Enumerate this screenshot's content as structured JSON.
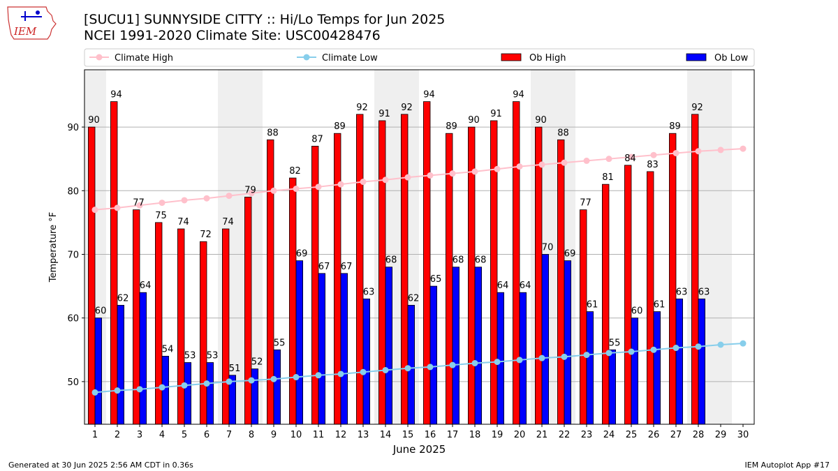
{
  "header": {
    "title": "[SUCU1] SUNNYSIDE CITTY :: Hi/Lo Temps for Jun 2025",
    "subtitle": "NCEI 1991-2020 Climate Site: USC00428476",
    "logo_text": "IEM"
  },
  "footer": {
    "left": "Generated at 30 Jun 2025 2:56 AM CDT in 0.36s",
    "right": "IEM Autoplot App #17"
  },
  "chart_data": {
    "type": "bar",
    "title": "[SUCU1] SUNNYSIDE CITTY :: Hi/Lo Temps for Jun 2025",
    "subtitle": "NCEI 1991-2020 Climate Site: USC00428476",
    "xlabel": "June 2025",
    "ylabel": "Temperature °F",
    "ylim": [
      43.3,
      99.0
    ],
    "yticks": [
      50,
      60,
      70,
      80,
      90
    ],
    "grid": "y",
    "legend_placement": "top",
    "categories": [
      "1",
      "2",
      "3",
      "4",
      "5",
      "6",
      "7",
      "8",
      "9",
      "10",
      "11",
      "12",
      "13",
      "14",
      "15",
      "16",
      "17",
      "18",
      "19",
      "20",
      "21",
      "22",
      "23",
      "24",
      "25",
      "26",
      "27",
      "28",
      "29",
      "30"
    ],
    "weekend_shading": [
      [
        1,
        1
      ],
      [
        7,
        8
      ],
      [
        14,
        15
      ],
      [
        21,
        22
      ],
      [
        28,
        29
      ]
    ],
    "series": [
      {
        "name": "Climate High",
        "kind": "line",
        "color": "#ffc0cb",
        "values": [
          77.0,
          77.3,
          77.7,
          78.1,
          78.5,
          78.8,
          79.2,
          79.6,
          80.0,
          80.3,
          80.6,
          81.0,
          81.4,
          81.7,
          82.1,
          82.4,
          82.7,
          83.0,
          83.4,
          83.8,
          84.1,
          84.4,
          84.7,
          85.0,
          85.3,
          85.6,
          85.9,
          86.2,
          86.4,
          86.6
        ]
      },
      {
        "name": "Climate Low",
        "kind": "line",
        "color": "#87ceeb",
        "values": [
          48.3,
          48.6,
          48.8,
          49.1,
          49.4,
          49.7,
          50.0,
          50.2,
          50.4,
          50.7,
          51.0,
          51.2,
          51.5,
          51.8,
          52.1,
          52.3,
          52.6,
          52.9,
          53.1,
          53.4,
          53.7,
          53.9,
          54.2,
          54.5,
          54.7,
          55.0,
          55.3,
          55.5,
          55.8,
          56.0
        ]
      },
      {
        "name": "Ob High",
        "kind": "bar",
        "color": "#ff0000",
        "values": [
          90,
          94,
          77,
          75,
          74,
          72,
          74,
          79,
          88,
          82,
          87,
          89,
          92,
          91,
          92,
          94,
          89,
          90,
          91,
          94,
          90,
          88,
          77,
          81,
          84,
          83,
          89,
          92,
          null,
          null
        ]
      },
      {
        "name": "Ob Low",
        "kind": "bar",
        "color": "#0000ff",
        "values": [
          60,
          62,
          64,
          54,
          53,
          53,
          51,
          52,
          55,
          69,
          67,
          67,
          63,
          68,
          62,
          65,
          68,
          68,
          64,
          64,
          70,
          69,
          61,
          55,
          60,
          61,
          63,
          63,
          null,
          null
        ]
      }
    ]
  }
}
